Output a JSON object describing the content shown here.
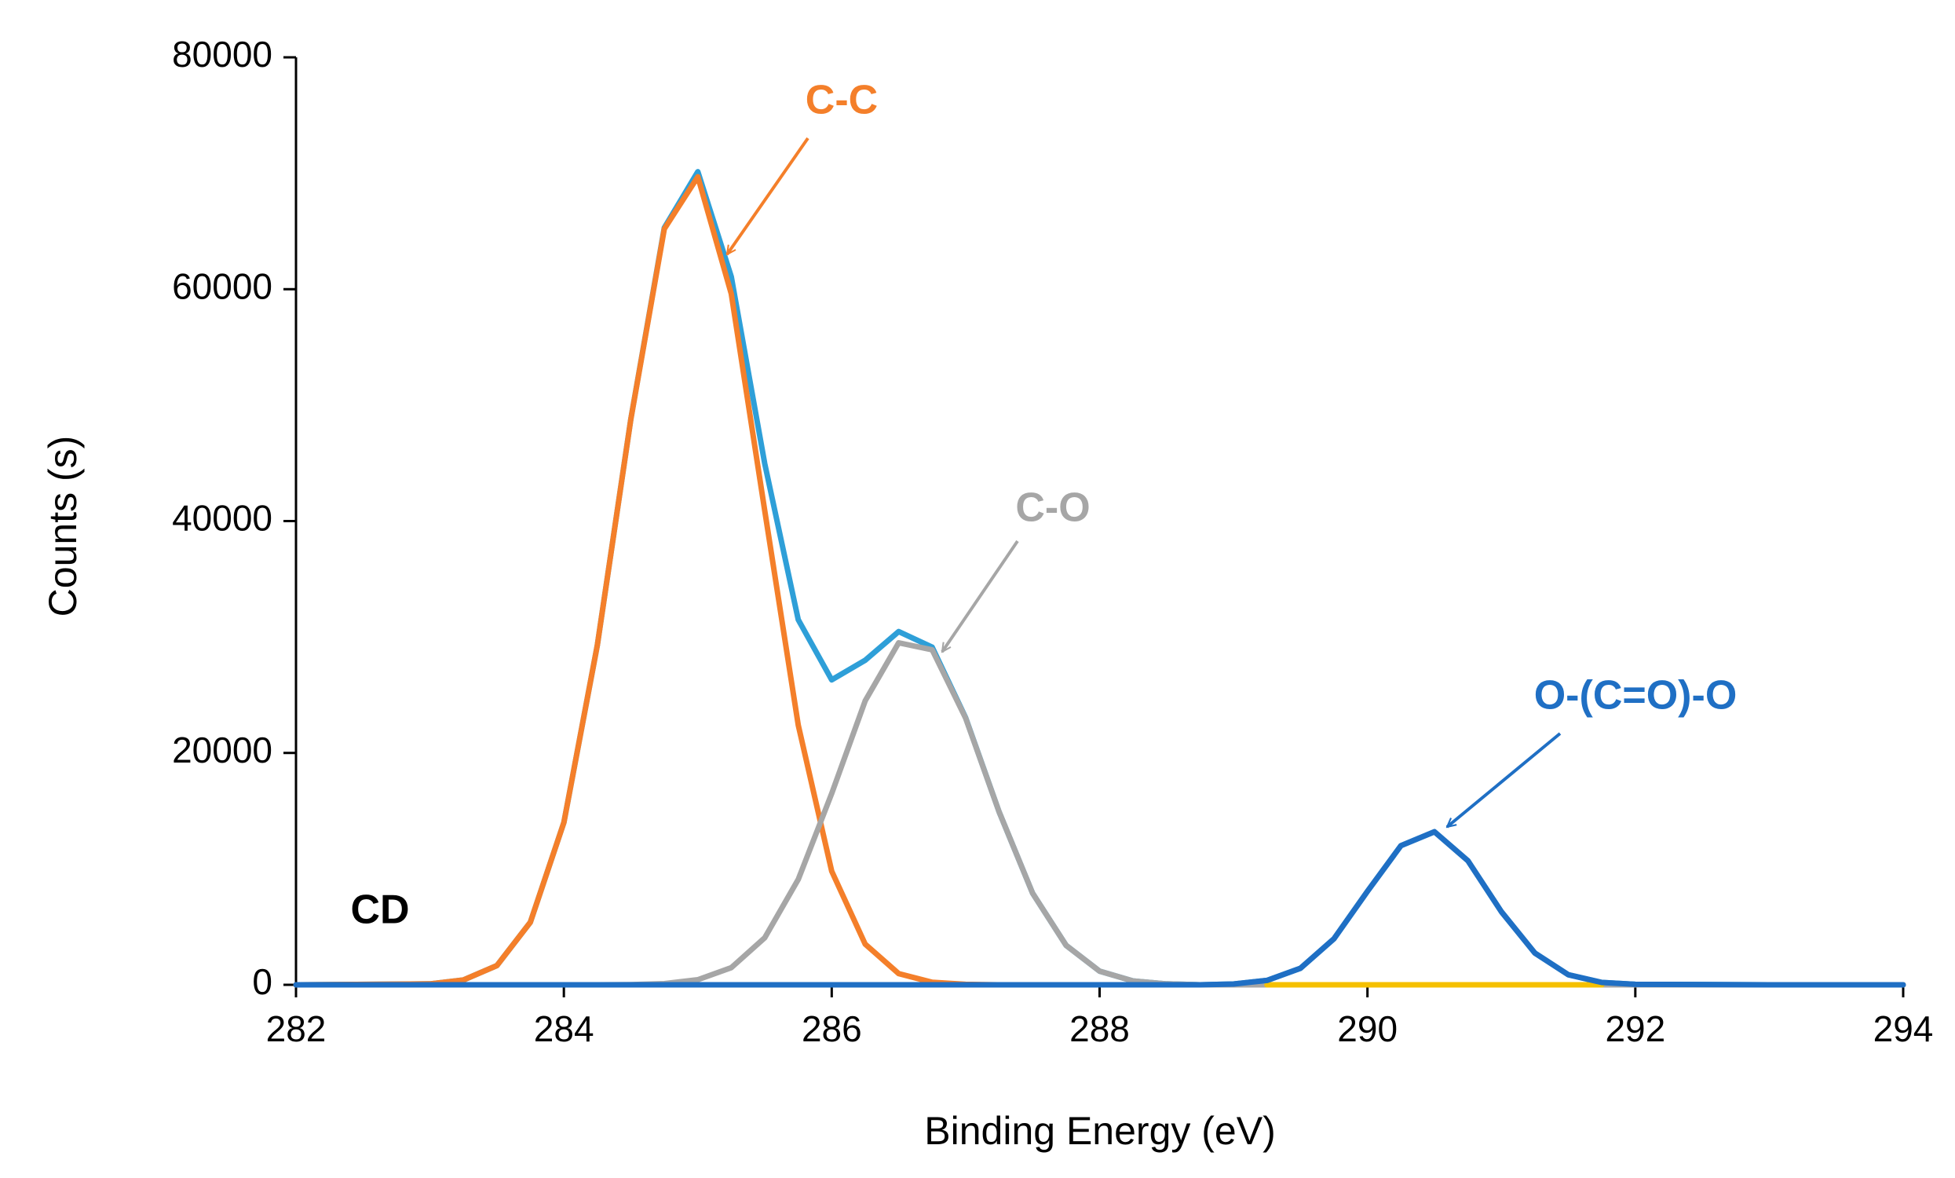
{
  "chart_data": {
    "type": "line",
    "xlabel": "Binding Energy (eV)",
    "ylabel": "Counts (s)",
    "sample_label": "CD",
    "x": [
      282,
      283,
      283.25,
      283.5,
      283.75,
      284,
      284.25,
      284.5,
      284.75,
      285,
      285.25,
      285.5,
      285.75,
      286,
      286.25,
      286.5,
      286.75,
      287,
      287.25,
      287.5,
      287.75,
      288,
      288.25,
      288.5,
      288.75,
      289,
      289.25,
      289.5,
      289.75,
      290,
      290.25,
      290.5,
      290.75,
      291,
      291.25,
      291.5,
      291.75,
      292,
      293,
      294
    ],
    "series": [
      {
        "color": "#2e9fd8",
        "values": [
          0,
          80,
          410,
          1660,
          5400,
          14000,
          29300,
          48820,
          65300,
          70140,
          61080,
          44960,
          31490,
          26300,
          28000,
          30470,
          29120,
          23040,
          14900,
          7900,
          3400,
          1180,
          330,
          80,
          0,
          70,
          380,
          1430,
          3970,
          8070,
          12000,
          13200,
          10700,
          6300,
          2740,
          870,
          200,
          40,
          0,
          0
        ]
      },
      {
        "name": "C-C",
        "color": "#f47f2a",
        "values": [
          0,
          80,
          410,
          1660,
          5400,
          14000,
          29300,
          48800,
          65200,
          69700,
          59600,
          40900,
          22400,
          9800,
          3500,
          970,
          220,
          40,
          0,
          0,
          0,
          0,
          0,
          0,
          0,
          0,
          0,
          0,
          0,
          0,
          0,
          0,
          0,
          0,
          0,
          0,
          0,
          0,
          0,
          0
        ]
      },
      {
        "name": "C-O",
        "color": "#a6a6a6",
        "values": [
          0,
          0,
          0,
          0,
          0,
          0,
          0,
          20,
          100,
          440,
          1480,
          4060,
          9090,
          16500,
          24500,
          29500,
          28900,
          23000,
          14900,
          7900,
          3400,
          1180,
          330,
          80,
          0,
          0,
          0,
          0,
          0,
          0,
          0,
          0,
          0,
          0,
          0,
          0,
          0,
          0,
          0,
          0
        ]
      },
      {
        "color": "#f5c000",
        "values": [
          null,
          null,
          null,
          null,
          null,
          null,
          null,
          null,
          null,
          null,
          null,
          null,
          null,
          null,
          null,
          null,
          null,
          null,
          null,
          null,
          null,
          null,
          null,
          null,
          null,
          null,
          0,
          0,
          0,
          0,
          0,
          0,
          0,
          0,
          0,
          0,
          0,
          null,
          null,
          null
        ]
      },
      {
        "name": "O-(C=O)-O",
        "color": "#1f6fc4",
        "values": [
          0,
          0,
          0,
          0,
          0,
          0,
          0,
          0,
          0,
          0,
          0,
          0,
          0,
          0,
          0,
          0,
          0,
          0,
          0,
          0,
          0,
          0,
          0,
          0,
          0,
          70,
          380,
          1430,
          3970,
          8070,
          12000,
          13200,
          10700,
          6300,
          2740,
          870,
          200,
          40,
          0,
          0
        ]
      }
    ],
    "xlim": [
      282,
      294
    ],
    "xticks": [
      282,
      284,
      286,
      288,
      290,
      292,
      294
    ],
    "ylim": [
      0,
      80000
    ],
    "yticks": [
      0,
      20000,
      40000,
      60000,
      80000
    ],
    "grid": false
  }
}
